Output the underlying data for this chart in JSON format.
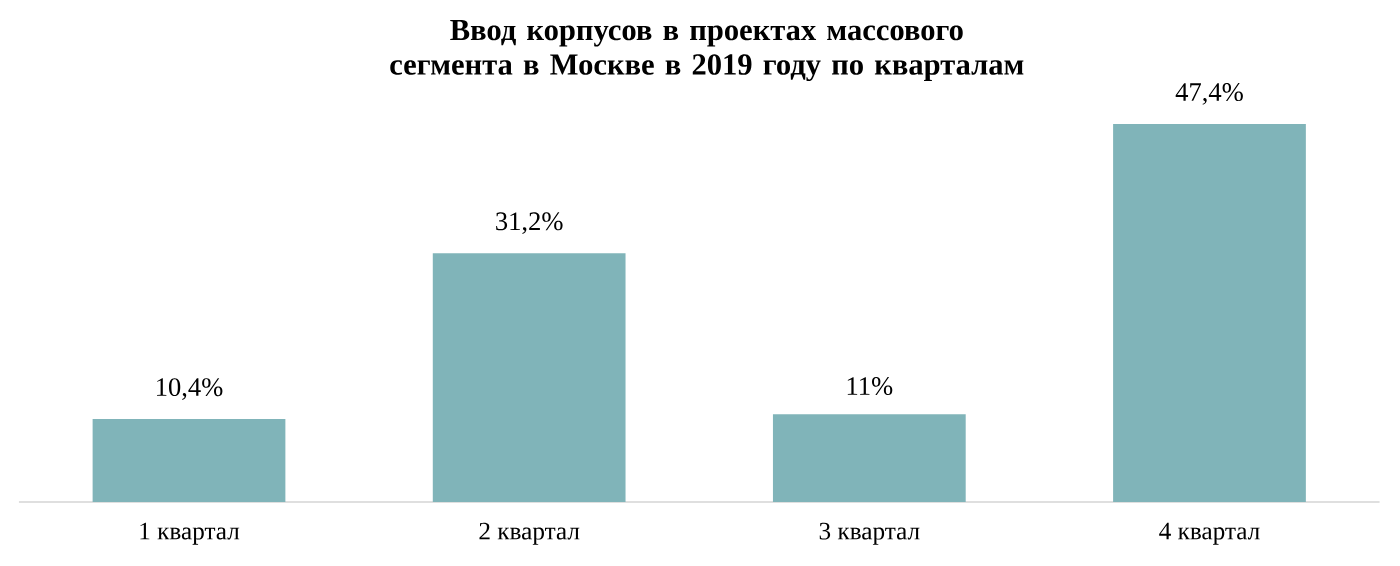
{
  "chart_data": {
    "type": "bar",
    "title": "Ввод корпусов в проектах массового сегмента в Москве в 2019 году по кварталам",
    "categories": [
      "1 квартал",
      "2 квартал",
      "3 квартал",
      "4 квартал"
    ],
    "values": [
      10.4,
      31.2,
      11,
      47.4
    ],
    "value_labels": [
      "10,4%",
      "31,2%",
      "11%",
      "47,4%"
    ],
    "color": "#80b4b9"
  }
}
